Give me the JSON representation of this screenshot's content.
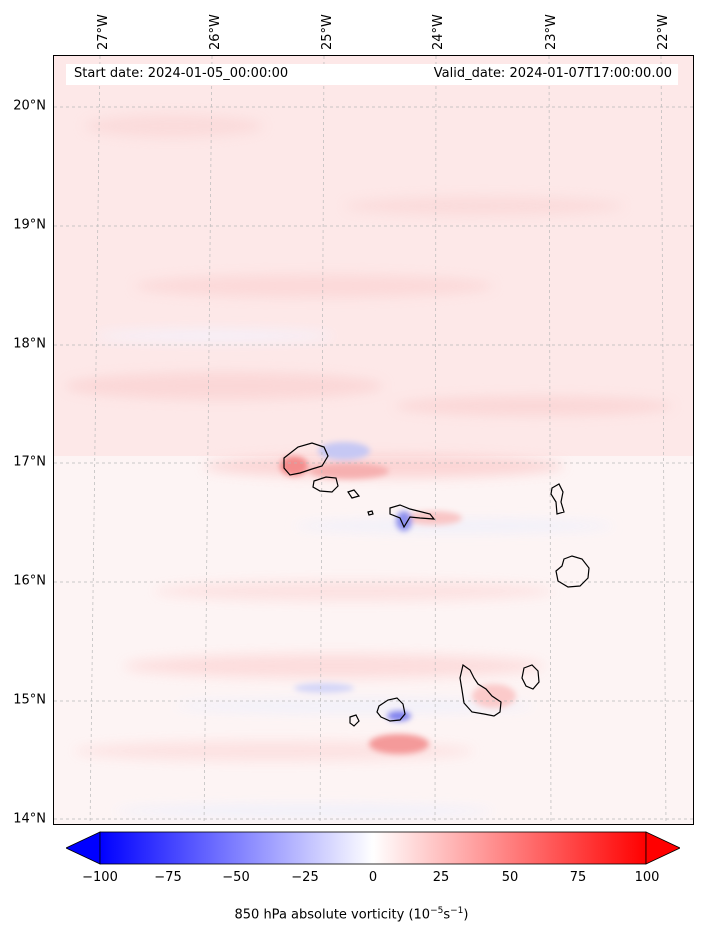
{
  "header": {
    "start_date": "Start date: 2024-01-05_00:00:00",
    "valid_date": "Valid_date: 2024-01-07T17:00:00.00"
  },
  "axes": {
    "lon_labels": [
      "27°W",
      "26°W",
      "25°W",
      "24°W",
      "23°W",
      "22°W"
    ],
    "lat_labels": [
      "20°N",
      "19°N",
      "18°N",
      "17°N",
      "16°N",
      "15°N",
      "14°N"
    ],
    "gridlines": true
  },
  "colorbar": {
    "ticks": [
      "−100",
      "−75",
      "−50",
      "−25",
      "0",
      "25",
      "50",
      "75",
      "100"
    ],
    "min": -100,
    "max": 100,
    "extend": "both",
    "colormap": "bwr",
    "label_main": "850 hPa absolute vorticity (10",
    "label_sup1": "−5",
    "label_mid": "s",
    "label_sup2": "−1",
    "label_end": ")"
  },
  "colors": {
    "positive": "#ff0000",
    "negative": "#0000ff",
    "neutral": "#ffffff",
    "coastline": "#000000"
  }
}
